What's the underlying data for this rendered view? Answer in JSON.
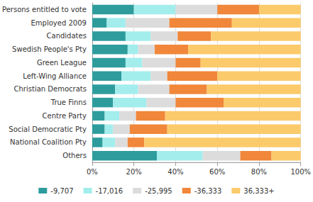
{
  "chart_data": {
    "type": "bar",
    "orientation": "horizontal",
    "stacked": true,
    "grid": true,
    "legend": "bottom",
    "categories": [
      "Persons entitled to vote",
      "Employed 2009",
      "Candidates",
      "Swedish People's Pty",
      "Green League",
      "Left-Wing Alliance",
      "Christian Democrats",
      "True Finns",
      "Centre Party",
      "Social Democratic Pty",
      "National Coalition Pty",
      "Others"
    ],
    "series": [
      {
        "name": "-9,707",
        "color": "#2e9c9c",
        "values": [
          20,
          7,
          16,
          17,
          16,
          14,
          11,
          10,
          6,
          6,
          5,
          31
        ]
      },
      {
        "name": "-17,016",
        "color": "#a3eded",
        "values": [
          20,
          9,
          12,
          5,
          8,
          14,
          11,
          16,
          7,
          4,
          6,
          22
        ]
      },
      {
        "name": "-25,995",
        "color": "#dcdcdc",
        "values": [
          20,
          21,
          13,
          8,
          16,
          8,
          15,
          14,
          8,
          8,
          6,
          18
        ]
      },
      {
        "name": "-36,333",
        "color": "#f0873a",
        "values": [
          20,
          30,
          16,
          16,
          12,
          24,
          18,
          23,
          14,
          18,
          8,
          15
        ]
      },
      {
        "name": "36,333+",
        "color": "#fbca6b",
        "values": [
          20,
          33,
          43,
          54,
          48,
          40,
          45,
          37,
          65,
          64,
          75,
          14
        ]
      }
    ],
    "xlim": [
      0,
      100
    ],
    "xticks": [
      {
        "value": 0,
        "label": "0%"
      },
      {
        "value": 20,
        "label": "20%"
      },
      {
        "value": 40,
        "label": "40%"
      },
      {
        "value": 60,
        "label": "60%"
      },
      {
        "value": 80,
        "label": "80%"
      },
      {
        "value": 100,
        "label": "100%"
      }
    ]
  }
}
